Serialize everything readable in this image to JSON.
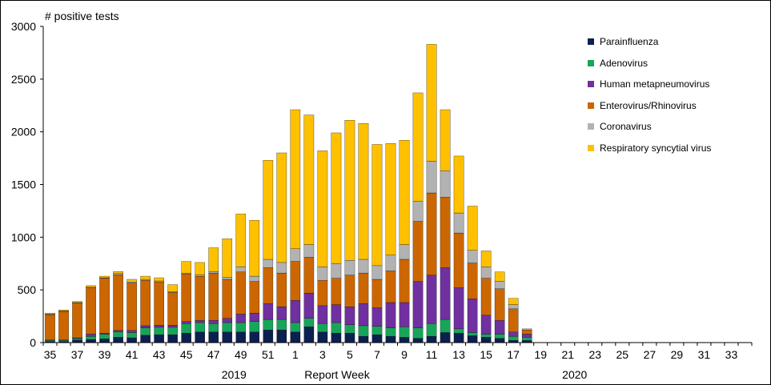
{
  "chart_data": {
    "type": "bar",
    "stacked": true,
    "ylabel": "# positive tests",
    "xlabel": "Report Week",
    "ylim": [
      0,
      3000
    ],
    "yticks": [
      0,
      500,
      1000,
      1500,
      2000,
      2500,
      3000
    ],
    "year_labels": [
      {
        "text": "2019",
        "week_index": 13.5
      },
      {
        "text": "2020",
        "week_index": 38.5
      }
    ],
    "categories": [
      "35",
      "36",
      "37",
      "38",
      "39",
      "40",
      "41",
      "42",
      "43",
      "44",
      "45",
      "46",
      "47",
      "48",
      "49",
      "50",
      "51",
      "52",
      "1",
      "2",
      "3",
      "4",
      "5",
      "6",
      "7",
      "8",
      "9",
      "10",
      "11",
      "12",
      "13",
      "14",
      "15",
      "16",
      "17",
      "18",
      "19",
      "20",
      "21",
      "22",
      "23",
      "24",
      "25",
      "26",
      "27",
      "28",
      "29",
      "30",
      "31",
      "32",
      "33",
      "34"
    ],
    "tick_labels": [
      "35",
      "37",
      "39",
      "41",
      "43",
      "45",
      "47",
      "49",
      "51",
      "1",
      "3",
      "5",
      "7",
      "9",
      "11",
      "13",
      "15",
      "17",
      "19",
      "21",
      "23",
      "25",
      "27",
      "29",
      "31",
      "33"
    ],
    "series": [
      {
        "name": "Parainfluenza",
        "color": "#0a2150",
        "values": [
          10,
          10,
          25,
          30,
          35,
          50,
          45,
          70,
          75,
          75,
          90,
          100,
          100,
          100,
          100,
          100,
          120,
          120,
          100,
          150,
          100,
          90,
          90,
          60,
          75,
          60,
          50,
          40,
          60,
          95,
          90,
          65,
          50,
          40,
          20,
          20,
          0,
          0,
          0,
          0,
          0,
          0,
          0,
          0,
          0,
          0,
          0,
          0,
          0,
          0,
          0,
          0
        ]
      },
      {
        "name": "Adenovirus",
        "color": "#18a55a",
        "values": [
          10,
          10,
          15,
          30,
          45,
          50,
          50,
          70,
          70,
          70,
          90,
          90,
          80,
          90,
          90,
          100,
          100,
          100,
          90,
          80,
          80,
          100,
          80,
          100,
          80,
          80,
          100,
          100,
          120,
          125,
          40,
          30,
          30,
          40,
          40,
          30,
          0,
          0,
          0,
          0,
          0,
          0,
          0,
          0,
          0,
          0,
          0,
          0,
          0,
          0,
          0,
          0
        ]
      },
      {
        "name": "Human metapneumovirus",
        "color": "#7030a0",
        "values": [
          5,
          5,
          5,
          20,
          10,
          15,
          20,
          20,
          20,
          20,
          20,
          20,
          30,
          40,
          80,
          80,
          150,
          120,
          210,
          240,
          170,
          170,
          170,
          210,
          175,
          240,
          230,
          440,
          460,
          490,
          390,
          320,
          180,
          130,
          40,
          30,
          0,
          0,
          0,
          0,
          0,
          0,
          0,
          0,
          0,
          0,
          0,
          0,
          0,
          0,
          0,
          0
        ]
      },
      {
        "name": "Enterovirus/Rhinovirus",
        "color": "#cc6600",
        "values": [
          240,
          270,
          330,
          440,
          520,
          530,
          450,
          430,
          410,
          310,
          450,
          420,
          450,
          370,
          400,
          300,
          340,
          320,
          370,
          340,
          240,
          250,
          300,
          290,
          270,
          300,
          410,
          570,
          780,
          670,
          520,
          340,
          350,
          300,
          220,
          40,
          0,
          0,
          0,
          0,
          0,
          0,
          0,
          0,
          0,
          0,
          0,
          0,
          0,
          0,
          0,
          0
        ]
      },
      {
        "name": "Coronavirus",
        "color": "#b2b2b2",
        "values": [
          5,
          5,
          5,
          5,
          5,
          10,
          10,
          10,
          10,
          10,
          10,
          15,
          15,
          20,
          50,
          50,
          80,
          100,
          120,
          120,
          130,
          140,
          140,
          130,
          130,
          150,
          140,
          190,
          300,
          250,
          190,
          120,
          110,
          70,
          40,
          10,
          0,
          0,
          0,
          0,
          0,
          0,
          0,
          0,
          0,
          0,
          0,
          0,
          0,
          0,
          0,
          0
        ]
      },
      {
        "name": "Respiratory syncytial virus",
        "color": "#ffc000",
        "values": [
          10,
          10,
          10,
          15,
          15,
          20,
          25,
          30,
          30,
          65,
          110,
          115,
          225,
          365,
          500,
          530,
          940,
          1040,
          1320,
          1230,
          1100,
          1240,
          1330,
          1290,
          1150,
          1060,
          990,
          1030,
          1110,
          580,
          540,
          420,
          150,
          90,
          60,
          0,
          0,
          0,
          0,
          0,
          0,
          0,
          0,
          0,
          0,
          0,
          0,
          0,
          0,
          0,
          0,
          0
        ]
      }
    ],
    "legend_position": "top-right",
    "grid": false
  }
}
